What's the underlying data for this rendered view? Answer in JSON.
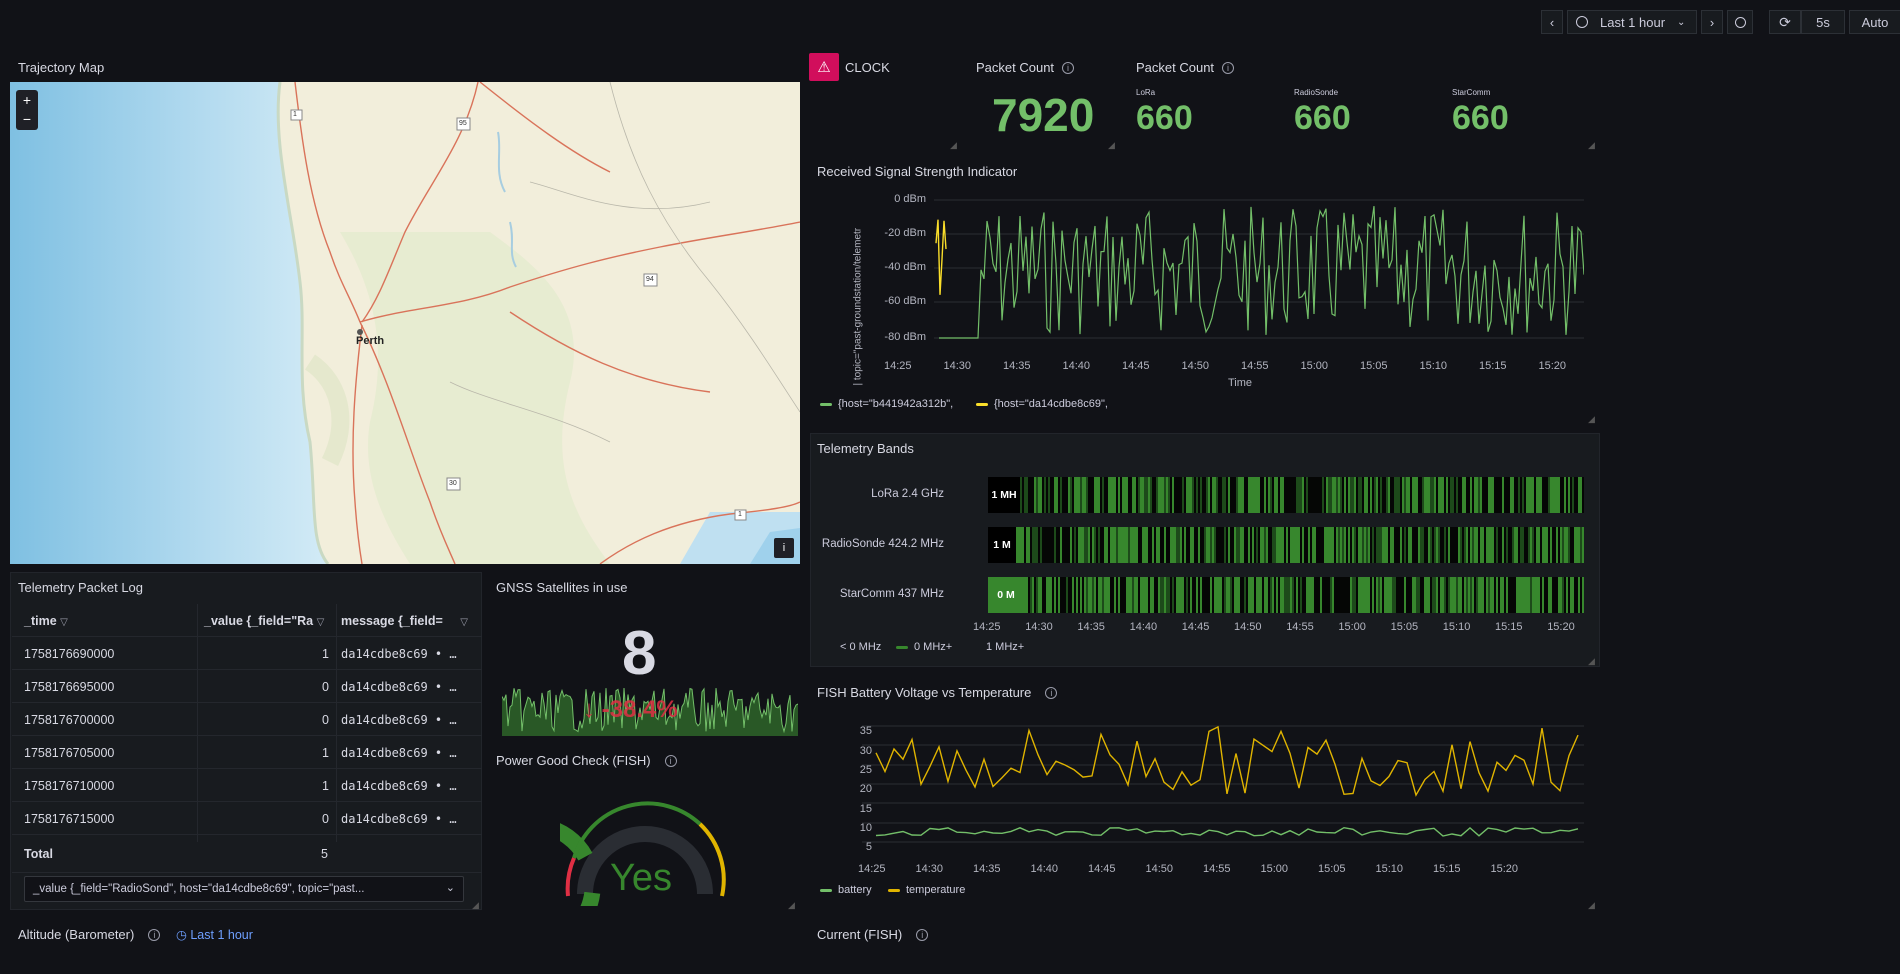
{
  "topbar": {
    "time_range": "Last 1 hour",
    "refresh_interval": "5s",
    "auto_label": "Auto"
  },
  "map_panel": {
    "title": "Trajectory Map",
    "zoom_in": "+",
    "zoom_out": "−",
    "city_label": "Perth",
    "road_labels": [
      "1",
      "95",
      "94",
      "30",
      "1"
    ],
    "attribution": "i"
  },
  "clock_panel": {
    "title": "CLOCK"
  },
  "packet_total": {
    "title": "Packet Count",
    "value": "7920"
  },
  "packet_breakdown": {
    "title": "Packet Count",
    "items": [
      {
        "label": "LoRa",
        "value": "660"
      },
      {
        "label": "RadioSonde",
        "value": "660"
      },
      {
        "label": "StarComm",
        "value": "660"
      }
    ]
  },
  "rssi_panel": {
    "title": "Received Signal Strength Indicator",
    "y_axis_label": "| topic=\"past-groundstation/telemetr",
    "y_ticks": [
      "0 dBm",
      "-20 dBm",
      "-40 dBm",
      "-60 dBm",
      "-80 dBm"
    ],
    "x_ticks": [
      "14:25",
      "14:30",
      "14:35",
      "14:40",
      "14:45",
      "14:50",
      "14:55",
      "15:00",
      "15:05",
      "15:10",
      "15:15",
      "15:20"
    ],
    "x_axis_label": "Time",
    "legend": [
      {
        "label": "{host=\"b441942a312b\",",
        "color": "#73bf69"
      },
      {
        "label": "{host=\"da14cdbe8c69\",",
        "color": "#fade2a"
      }
    ]
  },
  "bands_panel": {
    "title": "Telemetry Bands",
    "rows": [
      {
        "label": "LoRa 2.4 GHz",
        "tag": "1 MH"
      },
      {
        "label": "RadioSonde 424.2 MHz",
        "tag": "1 M"
      },
      {
        "label": "StarComm 437 MHz",
        "tag": "0 M"
      }
    ],
    "x_ticks": [
      "14:25",
      "14:30",
      "14:35",
      "14:40",
      "14:45",
      "14:50",
      "14:55",
      "15:00",
      "15:05",
      "15:10",
      "15:15",
      "15:20"
    ],
    "legend": [
      "< 0 MHz",
      "0 MHz+",
      "1 MHz+"
    ]
  },
  "packet_log": {
    "title": "Telemetry Packet Log",
    "headers": [
      "_time",
      "_value {_field=\"Ra",
      "message {_field="
    ],
    "rows": [
      {
        "time": "1758176690000",
        "value": "1",
        "message": "da14cdbe8c69  • …"
      },
      {
        "time": "1758176695000",
        "value": "0",
        "message": "da14cdbe8c69  • …"
      },
      {
        "time": "1758176700000",
        "value": "0",
        "message": "da14cdbe8c69  • …"
      },
      {
        "time": "1758176705000",
        "value": "1",
        "message": "da14cdbe8c69  • …"
      },
      {
        "time": "1758176710000",
        "value": "1",
        "message": "da14cdbe8c69  • …"
      },
      {
        "time": "1758176715000",
        "value": "0",
        "message": "da14cdbe8c69  • …"
      }
    ],
    "footer_label": "Total",
    "footer_value": "5",
    "field_selector": "_value {_field=\"RadioSond\", host=\"da14cdbe8c69\", topic=\"past..."
  },
  "gnss_panel": {
    "title": "GNSS Satellites in use",
    "value": "8",
    "change": "↓ -38.4%"
  },
  "power_panel": {
    "title": "Power Good Check (FISH)",
    "value": "Yes",
    "gauge_level": 0.85
  },
  "battery_panel": {
    "title": "FISH Battery Voltage vs Temperature",
    "y_ticks": [
      "35",
      "30",
      "25",
      "20",
      "15",
      "10",
      "5"
    ],
    "x_ticks": [
      "14:25",
      "14:30",
      "14:35",
      "14:40",
      "14:45",
      "14:50",
      "14:55",
      "15:00",
      "15:05",
      "15:10",
      "15:15",
      "15:20"
    ],
    "legend": [
      {
        "label": "battery",
        "color": "#73bf69"
      },
      {
        "label": "temperature",
        "color": "#e0b400"
      }
    ]
  },
  "altitude_panel": {
    "title": "Altitude (Barometer)",
    "time_badge": "Last 1 hour"
  },
  "current_panel": {
    "title": "Current (FISH)"
  }
}
